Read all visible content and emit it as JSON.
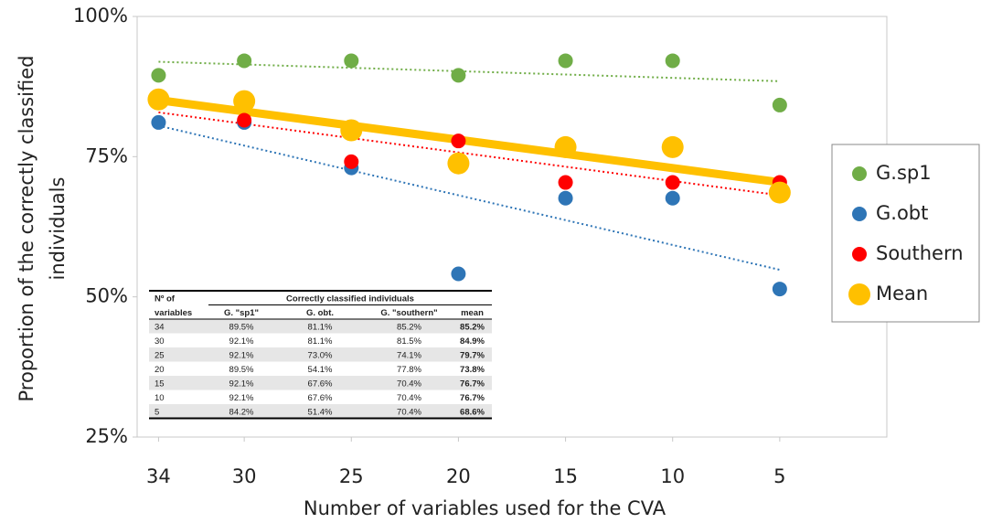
{
  "chart_data": {
    "type": "scatter",
    "xlabel": "Number of variables used for the CVA",
    "ylabel": [
      "Proportion of the correctly classified",
      "individuals"
    ],
    "x": [
      34,
      30,
      25,
      20,
      15,
      10,
      5
    ],
    "xlim": [
      35,
      0
    ],
    "xticks": [
      34,
      30,
      25,
      20,
      15,
      10,
      5
    ],
    "ylim": [
      25,
      100
    ],
    "yticks": [
      {
        "value": 25,
        "label": "25%"
      },
      {
        "value": 50,
        "label": "50%"
      },
      {
        "value": 75,
        "label": "75%"
      },
      {
        "value": 100,
        "label": "100%"
      }
    ],
    "trendline": true,
    "legend": "right",
    "series": [
      {
        "name": "G.sp1",
        "color": "#70ad47",
        "values": [
          89.5,
          92.1,
          92.1,
          89.5,
          92.1,
          92.1,
          84.2
        ]
      },
      {
        "name": "G.obt",
        "color": "#2e75b6",
        "values": [
          81.1,
          81.1,
          73.0,
          54.1,
          67.6,
          67.6,
          51.4
        ]
      },
      {
        "name": "Southern",
        "color": "#ff0000",
        "values": [
          85.2,
          81.5,
          74.1,
          77.8,
          70.4,
          70.4,
          70.4
        ]
      },
      {
        "name": "Mean",
        "color": "#ffc000",
        "values": [
          85.2,
          84.9,
          79.7,
          73.8,
          76.7,
          76.7,
          68.6
        ]
      }
    ],
    "table": {
      "header": [
        [
          "Nº of",
          "Correctly classified individuals"
        ],
        [
          "variables",
          "G. \"sp1\"",
          "G. obt.",
          "G. \"southern\"",
          "mean"
        ]
      ],
      "rows": [
        [
          "34",
          "89.5%",
          "81.1%",
          "85.2%",
          "85.2%"
        ],
        [
          "30",
          "92.1%",
          "81.1%",
          "81.5%",
          "84.9%"
        ],
        [
          "25",
          "92.1%",
          "73.0%",
          "74.1%",
          "79.7%"
        ],
        [
          "20",
          "89.5%",
          "54.1%",
          "77.8%",
          "73.8%"
        ],
        [
          "15",
          "92.1%",
          "67.6%",
          "70.4%",
          "76.7%"
        ],
        [
          "10",
          "92.1%",
          "67.6%",
          "70.4%",
          "76.7%"
        ],
        [
          "5",
          "84.2%",
          "51.4%",
          "70.4%",
          "68.6%"
        ]
      ]
    }
  }
}
